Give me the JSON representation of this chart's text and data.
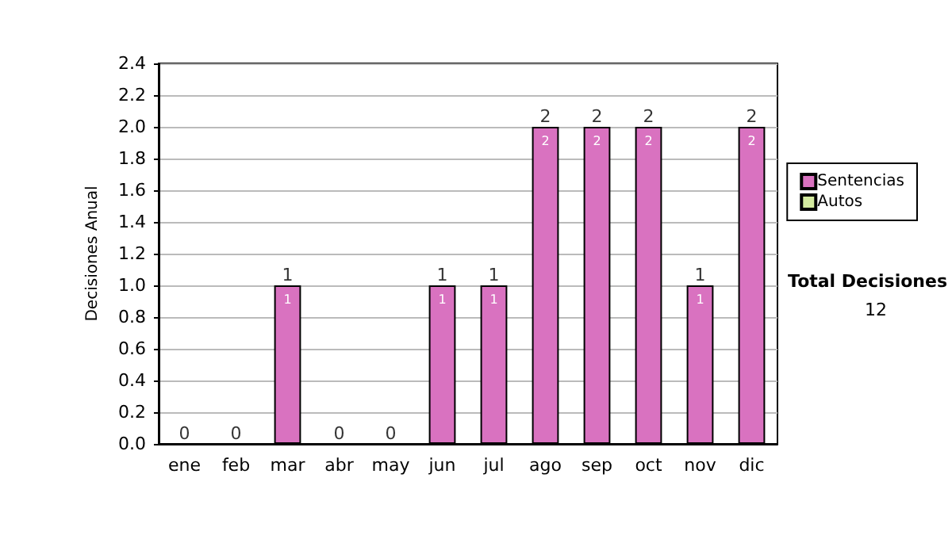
{
  "chart_data": {
    "type": "bar",
    "ylabel": "Decisiones Anual",
    "categories": [
      "ene",
      "feb",
      "mar",
      "abr",
      "may",
      "jun",
      "jul",
      "ago",
      "sep",
      "oct",
      "nov",
      "dic"
    ],
    "series": [
      {
        "name": "Sentencias",
        "color": "#d972c0",
        "values": [
          0,
          0,
          1,
          0,
          0,
          1,
          1,
          2,
          2,
          2,
          1,
          2
        ],
        "value_labels": [
          null,
          null,
          "1",
          null,
          null,
          "1",
          "1",
          "2",
          "2",
          "2",
          "1",
          "2"
        ]
      },
      {
        "name": "Autos",
        "color": "#d4eba0",
        "values": [
          0,
          0,
          0,
          0,
          0,
          0,
          0,
          0,
          0,
          0,
          0,
          0
        ]
      }
    ],
    "stacked": true,
    "totals": [
      "0",
      "0",
      "1",
      "0",
      "0",
      "1",
      "1",
      "2",
      "2",
      "2",
      "1",
      "2"
    ],
    "ylim": [
      0,
      2.4
    ],
    "yticks": [
      {
        "value": 0,
        "label": "0.0"
      },
      {
        "value": 0.2,
        "label": "0.2"
      },
      {
        "value": 0.4,
        "label": "0.4"
      },
      {
        "value": 0.6,
        "label": "0.6"
      },
      {
        "value": 0.8,
        "label": "0.8"
      },
      {
        "value": 1,
        "label": "1.0"
      },
      {
        "value": 1.2,
        "label": "1.2"
      },
      {
        "value": 1.4,
        "label": "1.4"
      },
      {
        "value": 1.6,
        "label": "1.6"
      },
      {
        "value": 1.8,
        "label": "1.8"
      },
      {
        "value": 2,
        "label": "2.0"
      },
      {
        "value": 2.2,
        "label": "2.2"
      },
      {
        "value": 2.4,
        "label": "2.4"
      }
    ],
    "grid": "y",
    "legend": "right",
    "annotations": [
      "Total Decisiones",
      "12"
    ]
  }
}
